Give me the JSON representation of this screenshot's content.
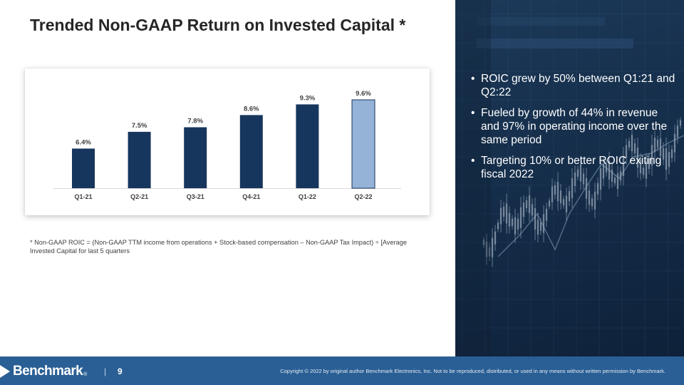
{
  "slide": {
    "title": "Trended Non-GAAP Return on Invested Capital *",
    "footnote": "*  Non-GAAP ROIC = (Non-GAAP TTM income from operations + Stock-based compensation – Non-GAAP Tax Impact) ÷ [Average Invested Capital for last 5 quarters"
  },
  "chart_data": {
    "type": "bar",
    "categories": [
      "Q1-21",
      "Q2-21",
      "Q3-21",
      "Q4-21",
      "Q1-22",
      "Q2-22"
    ],
    "values": [
      6.4,
      7.5,
      7.8,
      8.6,
      9.3,
      9.6
    ],
    "data_labels": [
      "6.4%",
      "7.5%",
      "7.8%",
      "8.6%",
      "9.3%",
      "9.6%"
    ],
    "ylim": [
      3.8,
      9.6
    ],
    "colors": {
      "bar": "#17365d",
      "highlight": "#95b3d7",
      "highlight_border": "#17365d",
      "baseline": "#d9d9d9"
    },
    "highlight_index": 5,
    "grid": false,
    "legend": "none"
  },
  "bullets": [
    "ROIC grew by 50% between Q1:21 and Q2:22",
    "Fueled by growth of 44% in revenue and 97% in operating income over the same period",
    "Targeting 10% or better ROIC exiting fiscal 2022"
  ],
  "footer": {
    "logo_text": "Benchmark",
    "logo_reg": "®",
    "separator": "|",
    "page_number": "9",
    "copyright": "Copyright © 2022 by original author Benchmark Electronics, Inc. Not to be reproduced, distributed, or used in any means without written permission by Benchmark."
  }
}
